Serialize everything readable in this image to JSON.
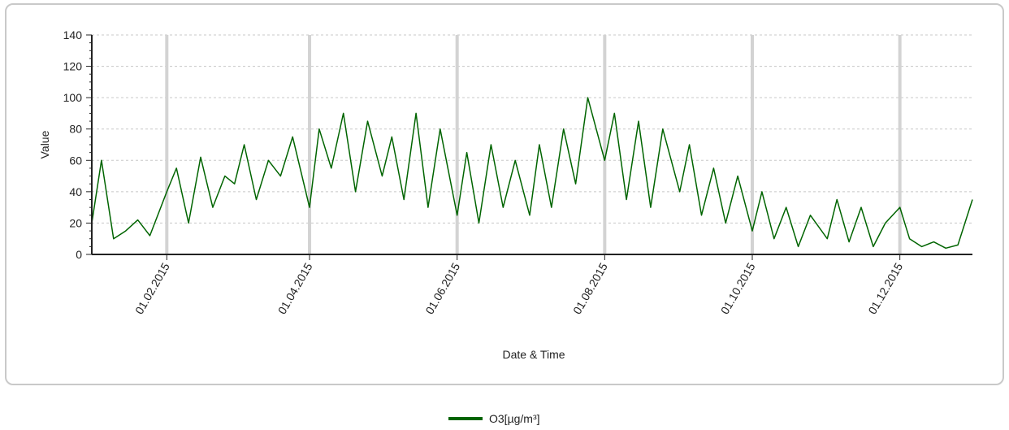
{
  "chart_data": {
    "type": "line",
    "title": "",
    "xlabel": "Date & Time",
    "ylabel": "Value",
    "ylim": [
      0,
      140
    ],
    "y_ticks": [
      0,
      20,
      40,
      60,
      80,
      100,
      120,
      140
    ],
    "x_range": [
      "2015-01-01",
      "2015-12-31"
    ],
    "x_tick_labels": [
      "01.02.2015",
      "01.04.2015",
      "01.06.2015",
      "01.08.2015",
      "01.10.2015",
      "01.12.2015"
    ],
    "x_tick_dates": [
      "2015-02-01",
      "2015-04-01",
      "2015-06-01",
      "2015-08-01",
      "2015-10-01",
      "2015-12-01"
    ],
    "grid": true,
    "legend_position": "bottom-center",
    "series": [
      {
        "name": "O3[µg/m³]",
        "color": "#006400",
        "points": [
          [
            "2015-01-01",
            20
          ],
          [
            "2015-01-05",
            60
          ],
          [
            "2015-01-10",
            10
          ],
          [
            "2015-01-15",
            15
          ],
          [
            "2015-01-20",
            22
          ],
          [
            "2015-01-25",
            12
          ],
          [
            "2015-02-01",
            40
          ],
          [
            "2015-02-05",
            55
          ],
          [
            "2015-02-10",
            20
          ],
          [
            "2015-02-15",
            62
          ],
          [
            "2015-02-20",
            30
          ],
          [
            "2015-02-25",
            50
          ],
          [
            "2015-03-01",
            45
          ],
          [
            "2015-03-05",
            70
          ],
          [
            "2015-03-10",
            35
          ],
          [
            "2015-03-15",
            60
          ],
          [
            "2015-03-20",
            50
          ],
          [
            "2015-03-25",
            75
          ],
          [
            "2015-04-01",
            30
          ],
          [
            "2015-04-05",
            80
          ],
          [
            "2015-04-10",
            55
          ],
          [
            "2015-04-15",
            90
          ],
          [
            "2015-04-20",
            40
          ],
          [
            "2015-04-25",
            85
          ],
          [
            "2015-05-01",
            50
          ],
          [
            "2015-05-05",
            75
          ],
          [
            "2015-05-10",
            35
          ],
          [
            "2015-05-15",
            90
          ],
          [
            "2015-05-20",
            30
          ],
          [
            "2015-05-25",
            80
          ],
          [
            "2015-06-01",
            25
          ],
          [
            "2015-06-05",
            65
          ],
          [
            "2015-06-10",
            20
          ],
          [
            "2015-06-15",
            70
          ],
          [
            "2015-06-20",
            30
          ],
          [
            "2015-06-25",
            60
          ],
          [
            "2015-07-01",
            25
          ],
          [
            "2015-07-05",
            70
          ],
          [
            "2015-07-10",
            30
          ],
          [
            "2015-07-15",
            80
          ],
          [
            "2015-07-20",
            45
          ],
          [
            "2015-07-25",
            100
          ],
          [
            "2015-08-01",
            60
          ],
          [
            "2015-08-05",
            90
          ],
          [
            "2015-08-10",
            35
          ],
          [
            "2015-08-15",
            85
          ],
          [
            "2015-08-20",
            30
          ],
          [
            "2015-08-25",
            80
          ],
          [
            "2015-09-01",
            40
          ],
          [
            "2015-09-05",
            70
          ],
          [
            "2015-09-10",
            25
          ],
          [
            "2015-09-15",
            55
          ],
          [
            "2015-09-20",
            20
          ],
          [
            "2015-09-25",
            50
          ],
          [
            "2015-10-01",
            15
          ],
          [
            "2015-10-05",
            40
          ],
          [
            "2015-10-10",
            10
          ],
          [
            "2015-10-15",
            30
          ],
          [
            "2015-10-20",
            5
          ],
          [
            "2015-10-25",
            25
          ],
          [
            "2015-11-01",
            10
          ],
          [
            "2015-11-05",
            35
          ],
          [
            "2015-11-10",
            8
          ],
          [
            "2015-11-15",
            30
          ],
          [
            "2015-11-20",
            5
          ],
          [
            "2015-11-25",
            20
          ],
          [
            "2015-12-01",
            30
          ],
          [
            "2015-12-05",
            10
          ],
          [
            "2015-12-10",
            5
          ],
          [
            "2015-12-15",
            8
          ],
          [
            "2015-12-20",
            4
          ],
          [
            "2015-12-25",
            6
          ],
          [
            "2015-12-31",
            35
          ]
        ]
      }
    ]
  }
}
